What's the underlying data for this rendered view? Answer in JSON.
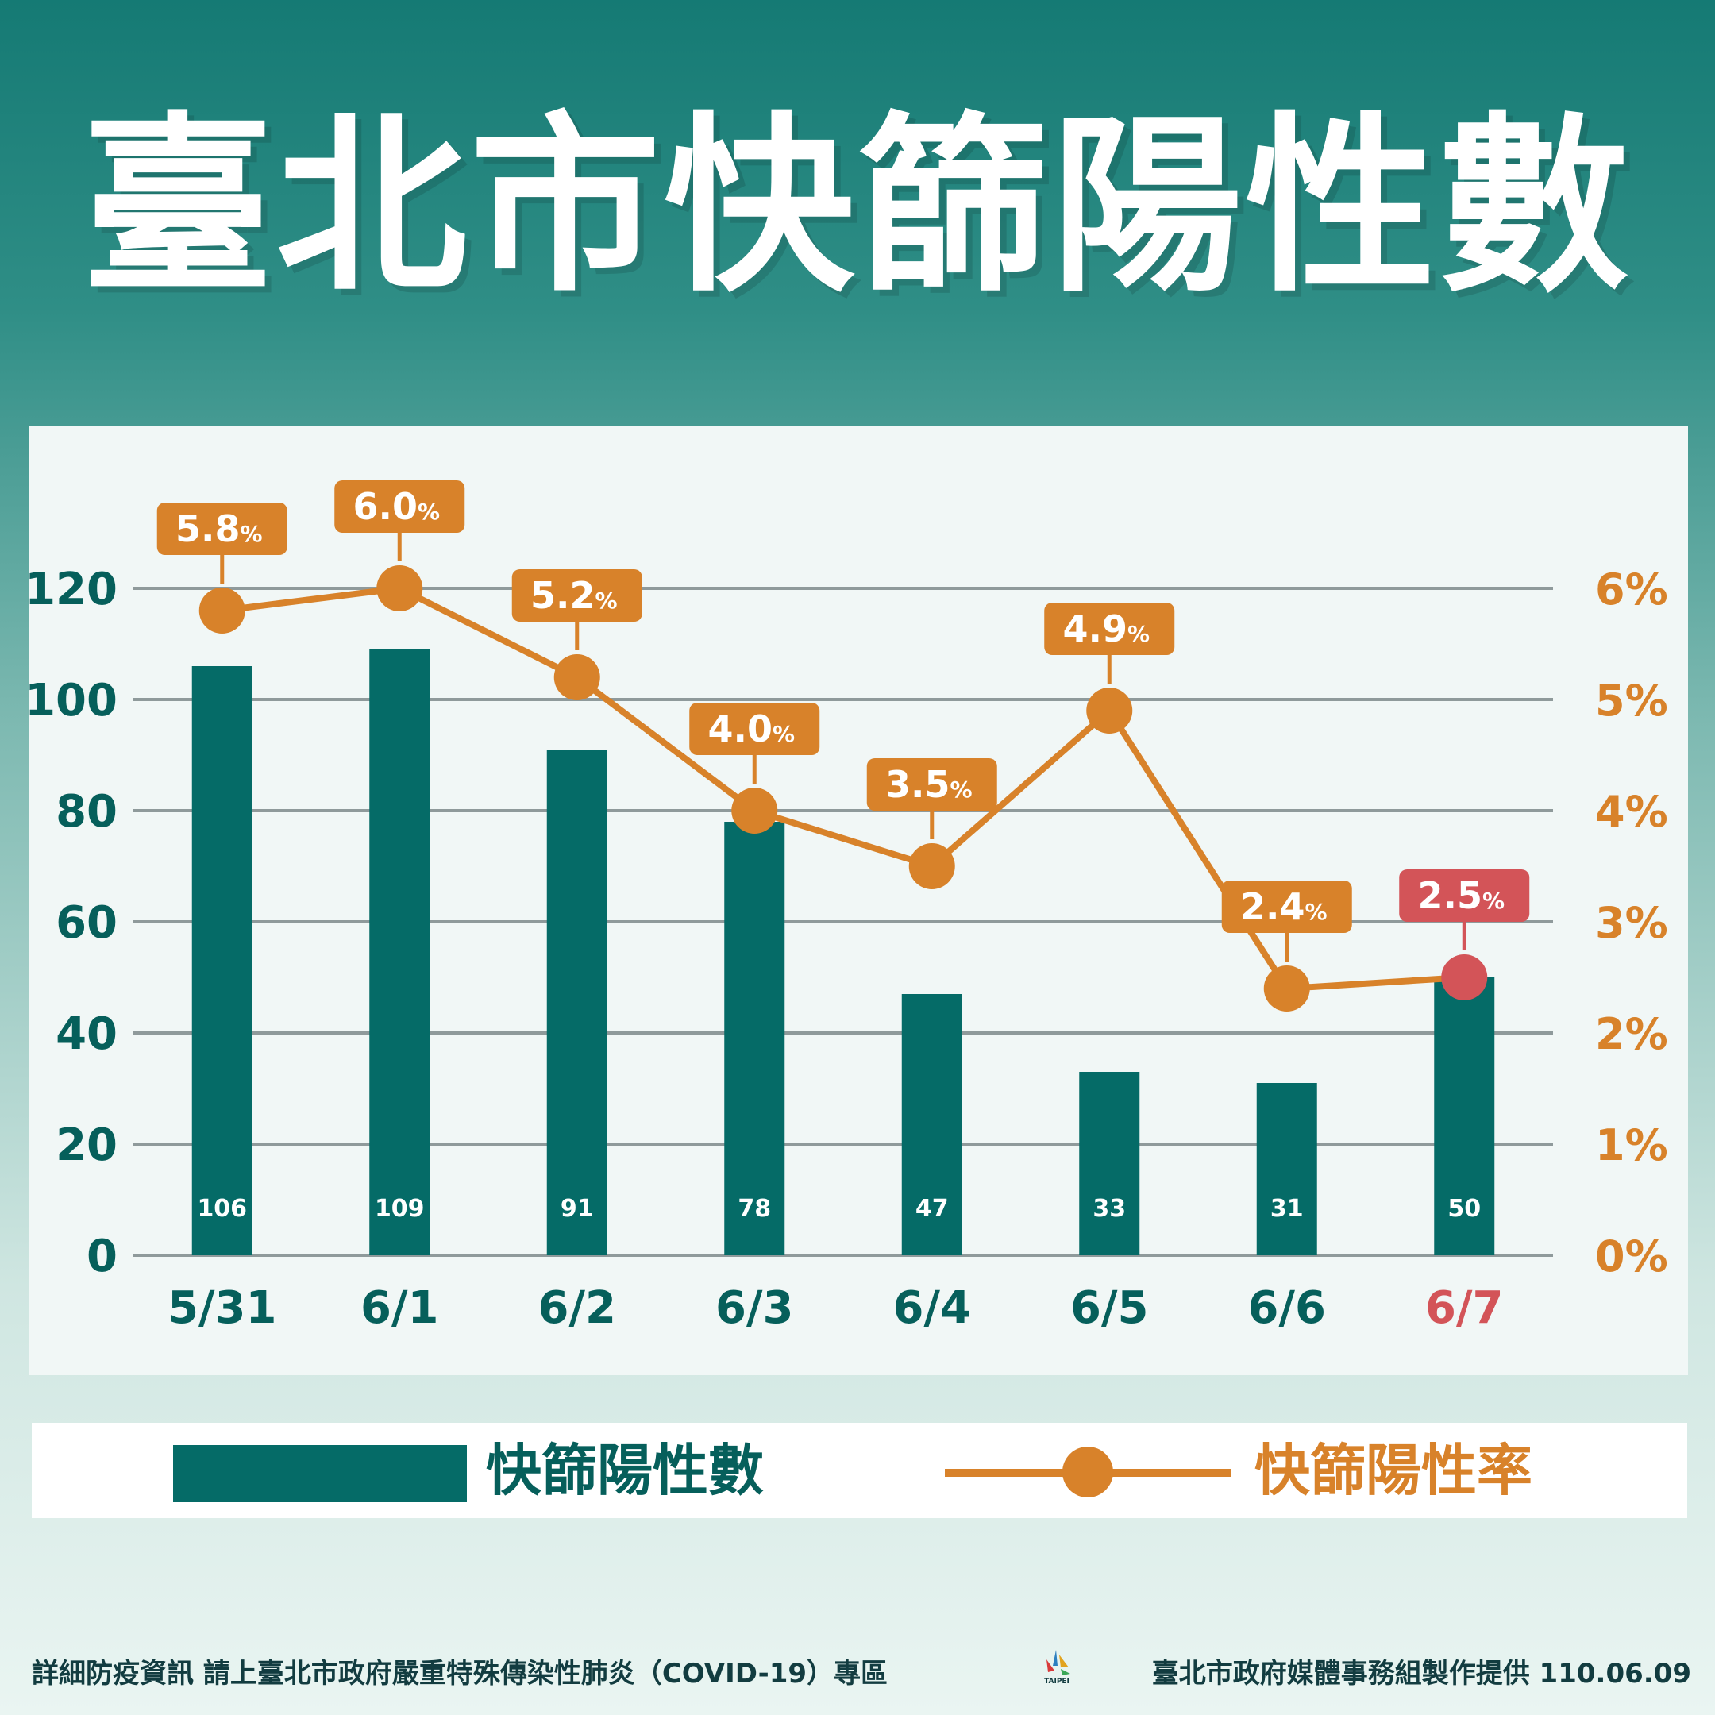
{
  "title": "臺北市快篩陽性數",
  "chart_data": {
    "type": "bar",
    "categories": [
      "5/31",
      "6/1",
      "6/2",
      "6/3",
      "6/4",
      "6/5",
      "6/6",
      "6/7"
    ],
    "highlight_category": "6/7",
    "series": [
      {
        "name": "快篩陽性數",
        "type": "bar",
        "axis": "left",
        "values": [
          106,
          109,
          91,
          78,
          47,
          33,
          31,
          50
        ]
      },
      {
        "name": "快篩陽性率",
        "type": "line",
        "axis": "right",
        "values": [
          5.8,
          6.0,
          5.2,
          4.0,
          3.5,
          4.9,
          2.4,
          2.5
        ],
        "labels": [
          "5.8",
          "6.0",
          "5.2",
          "4.0",
          "3.5",
          "4.9",
          "2.4",
          "2.5"
        ],
        "unit": "%"
      }
    ],
    "left_axis": {
      "ylim": [
        0,
        120
      ],
      "ticks": [
        0,
        20,
        40,
        60,
        80,
        100,
        120
      ],
      "tick_labels": [
        "0",
        "20",
        "40",
        "60",
        "80",
        "100",
        "120"
      ]
    },
    "right_axis": {
      "ylim": [
        0,
        6
      ],
      "ticks": [
        0,
        1,
        2,
        3,
        4,
        5,
        6
      ],
      "tick_labels": [
        "0%",
        "1%",
        "2%",
        "3%",
        "4%",
        "5%",
        "6%"
      ]
    },
    "grid": true,
    "legend_position": "bottom",
    "colors": {
      "bar": "#056b67",
      "line": "#d8822a",
      "highlight": "#d35458",
      "axis_text": "#065f5b",
      "grid": "#8f9a9b",
      "bar_label": "#ffffff"
    }
  },
  "legend": {
    "bar_label": "快篩陽性數",
    "line_label": "快篩陽性率"
  },
  "footer": {
    "note": "詳細防疫資訊 請上臺北市政府嚴重特殊傳染性肺炎（COVID-19）專區",
    "credit": "臺北市政府媒體事務組製作提供 110.06.09",
    "logo_text": "TAIPEI"
  }
}
